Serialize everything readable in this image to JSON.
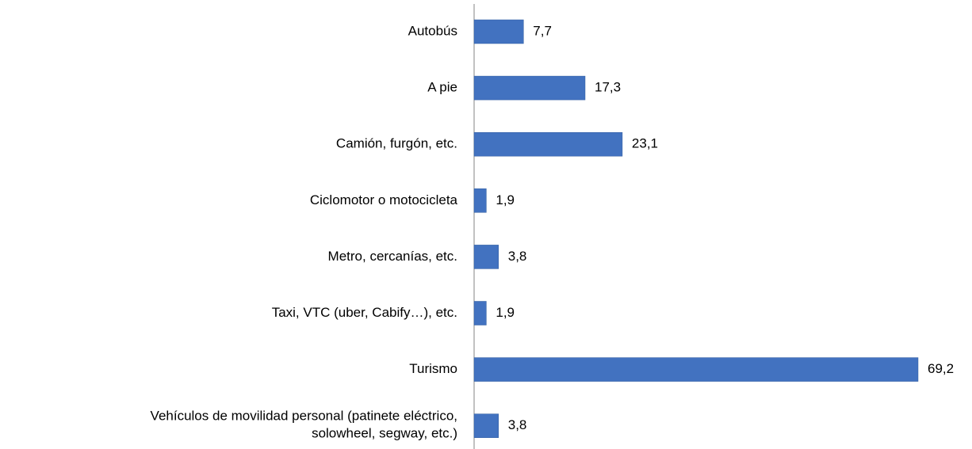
{
  "chart_data": {
    "type": "bar",
    "orientation": "horizontal",
    "categories": [
      "Autobús",
      "A pie",
      "Camión, furgón, etc.",
      "Ciclomotor o motocicleta",
      "Metro, cercanías, etc.",
      "Taxi, VTC (uber, Cabify…), etc.",
      "Turismo",
      "Vehículos de movilidad personal (patinete eléctrico,\nsolowheel, segway, etc.)"
    ],
    "values": [
      7.7,
      17.3,
      23.1,
      1.9,
      3.8,
      1.9,
      69.2,
      3.8
    ],
    "value_labels": [
      "7,7",
      "17,3",
      "23,1",
      "1,9",
      "3,8",
      "1,9",
      "69,2",
      "3,8"
    ],
    "color": "#4272c0"
  }
}
